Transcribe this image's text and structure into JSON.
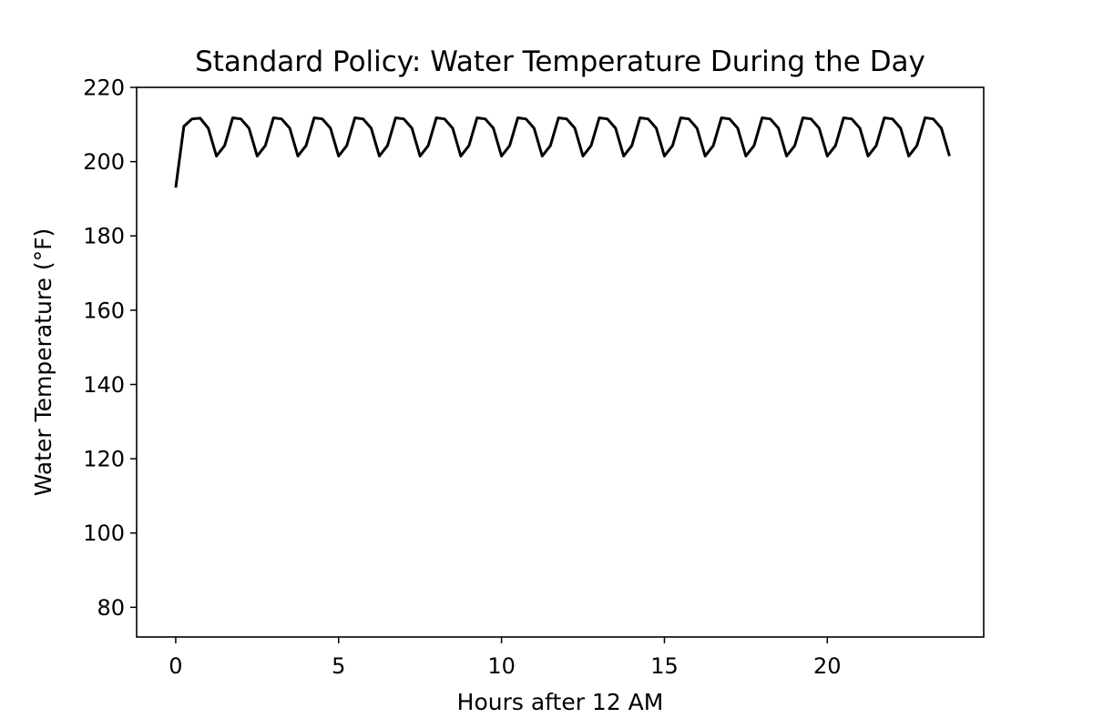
{
  "chart_data": {
    "type": "line",
    "title": "Standard Policy: Water Temperature During the Day",
    "xlabel": "Hours after 12 AM",
    "ylabel": "Water Temperature (°F)",
    "xlim": [
      -1.2,
      24.8
    ],
    "ylim": [
      72,
      220
    ],
    "xticks": [
      0,
      5,
      10,
      15,
      20
    ],
    "yticks": [
      80,
      100,
      120,
      140,
      160,
      180,
      200,
      220
    ],
    "grid": false,
    "series": [
      {
        "color": "#000000",
        "x": [
          0,
          0.25,
          0.5,
          0.75,
          1.0,
          1.25,
          1.5,
          1.75,
          2.0,
          2.25,
          2.5,
          2.75,
          3.0,
          3.25,
          3.5,
          3.75,
          4.0,
          4.25,
          4.5,
          4.75,
          5.0,
          5.25,
          5.5,
          5.75,
          6.0,
          6.25,
          6.5,
          6.75,
          7.0,
          7.25,
          7.5,
          7.75,
          8.0,
          8.25,
          8.5,
          8.75,
          9.0,
          9.25,
          9.5,
          9.75,
          10.0,
          10.25,
          10.5,
          10.75,
          11.0,
          11.25,
          11.5,
          11.75,
          12.0,
          12.25,
          12.5,
          12.75,
          13.0,
          13.25,
          13.5,
          13.75,
          14.0,
          14.25,
          14.5,
          14.75,
          15.0,
          15.25,
          15.5,
          15.75,
          16.0,
          16.25,
          16.5,
          16.75,
          17.0,
          17.25,
          17.5,
          17.75,
          18.0,
          18.25,
          18.5,
          18.75,
          19.0,
          19.25,
          19.5,
          19.75,
          20.0,
          20.25,
          20.5,
          20.75,
          21.0,
          21.25,
          21.5,
          21.75,
          22.0,
          22.25,
          22.5,
          22.75,
          23.0,
          23.25,
          23.5,
          23.75
        ],
        "y": [
          193.0,
          209.5,
          211.5,
          211.7,
          209.0,
          201.5,
          204.3,
          211.8,
          211.5,
          209.0,
          201.5,
          204.3,
          211.8,
          211.5,
          209.0,
          201.5,
          204.3,
          211.8,
          211.5,
          209.0,
          201.5,
          204.3,
          211.8,
          211.5,
          209.0,
          201.5,
          204.3,
          211.8,
          211.5,
          209.0,
          201.5,
          204.3,
          211.8,
          211.5,
          209.0,
          201.5,
          204.3,
          211.8,
          211.5,
          209.0,
          201.5,
          204.3,
          211.8,
          211.5,
          209.0,
          201.5,
          204.3,
          211.8,
          211.5,
          209.0,
          201.5,
          204.3,
          211.8,
          211.5,
          209.0,
          201.5,
          204.3,
          211.8,
          211.5,
          209.0,
          201.5,
          204.3,
          211.8,
          211.5,
          209.0,
          201.5,
          204.3,
          211.8,
          211.5,
          209.0,
          201.5,
          204.3,
          211.8,
          211.5,
          209.0,
          201.5,
          204.3,
          211.8,
          211.5,
          209.0,
          201.5,
          204.3,
          211.8,
          211.5,
          209.0,
          201.5,
          204.3,
          211.8,
          211.5,
          209.0,
          201.5,
          204.3,
          211.8,
          211.5,
          209.0,
          201.5
        ]
      }
    ]
  }
}
